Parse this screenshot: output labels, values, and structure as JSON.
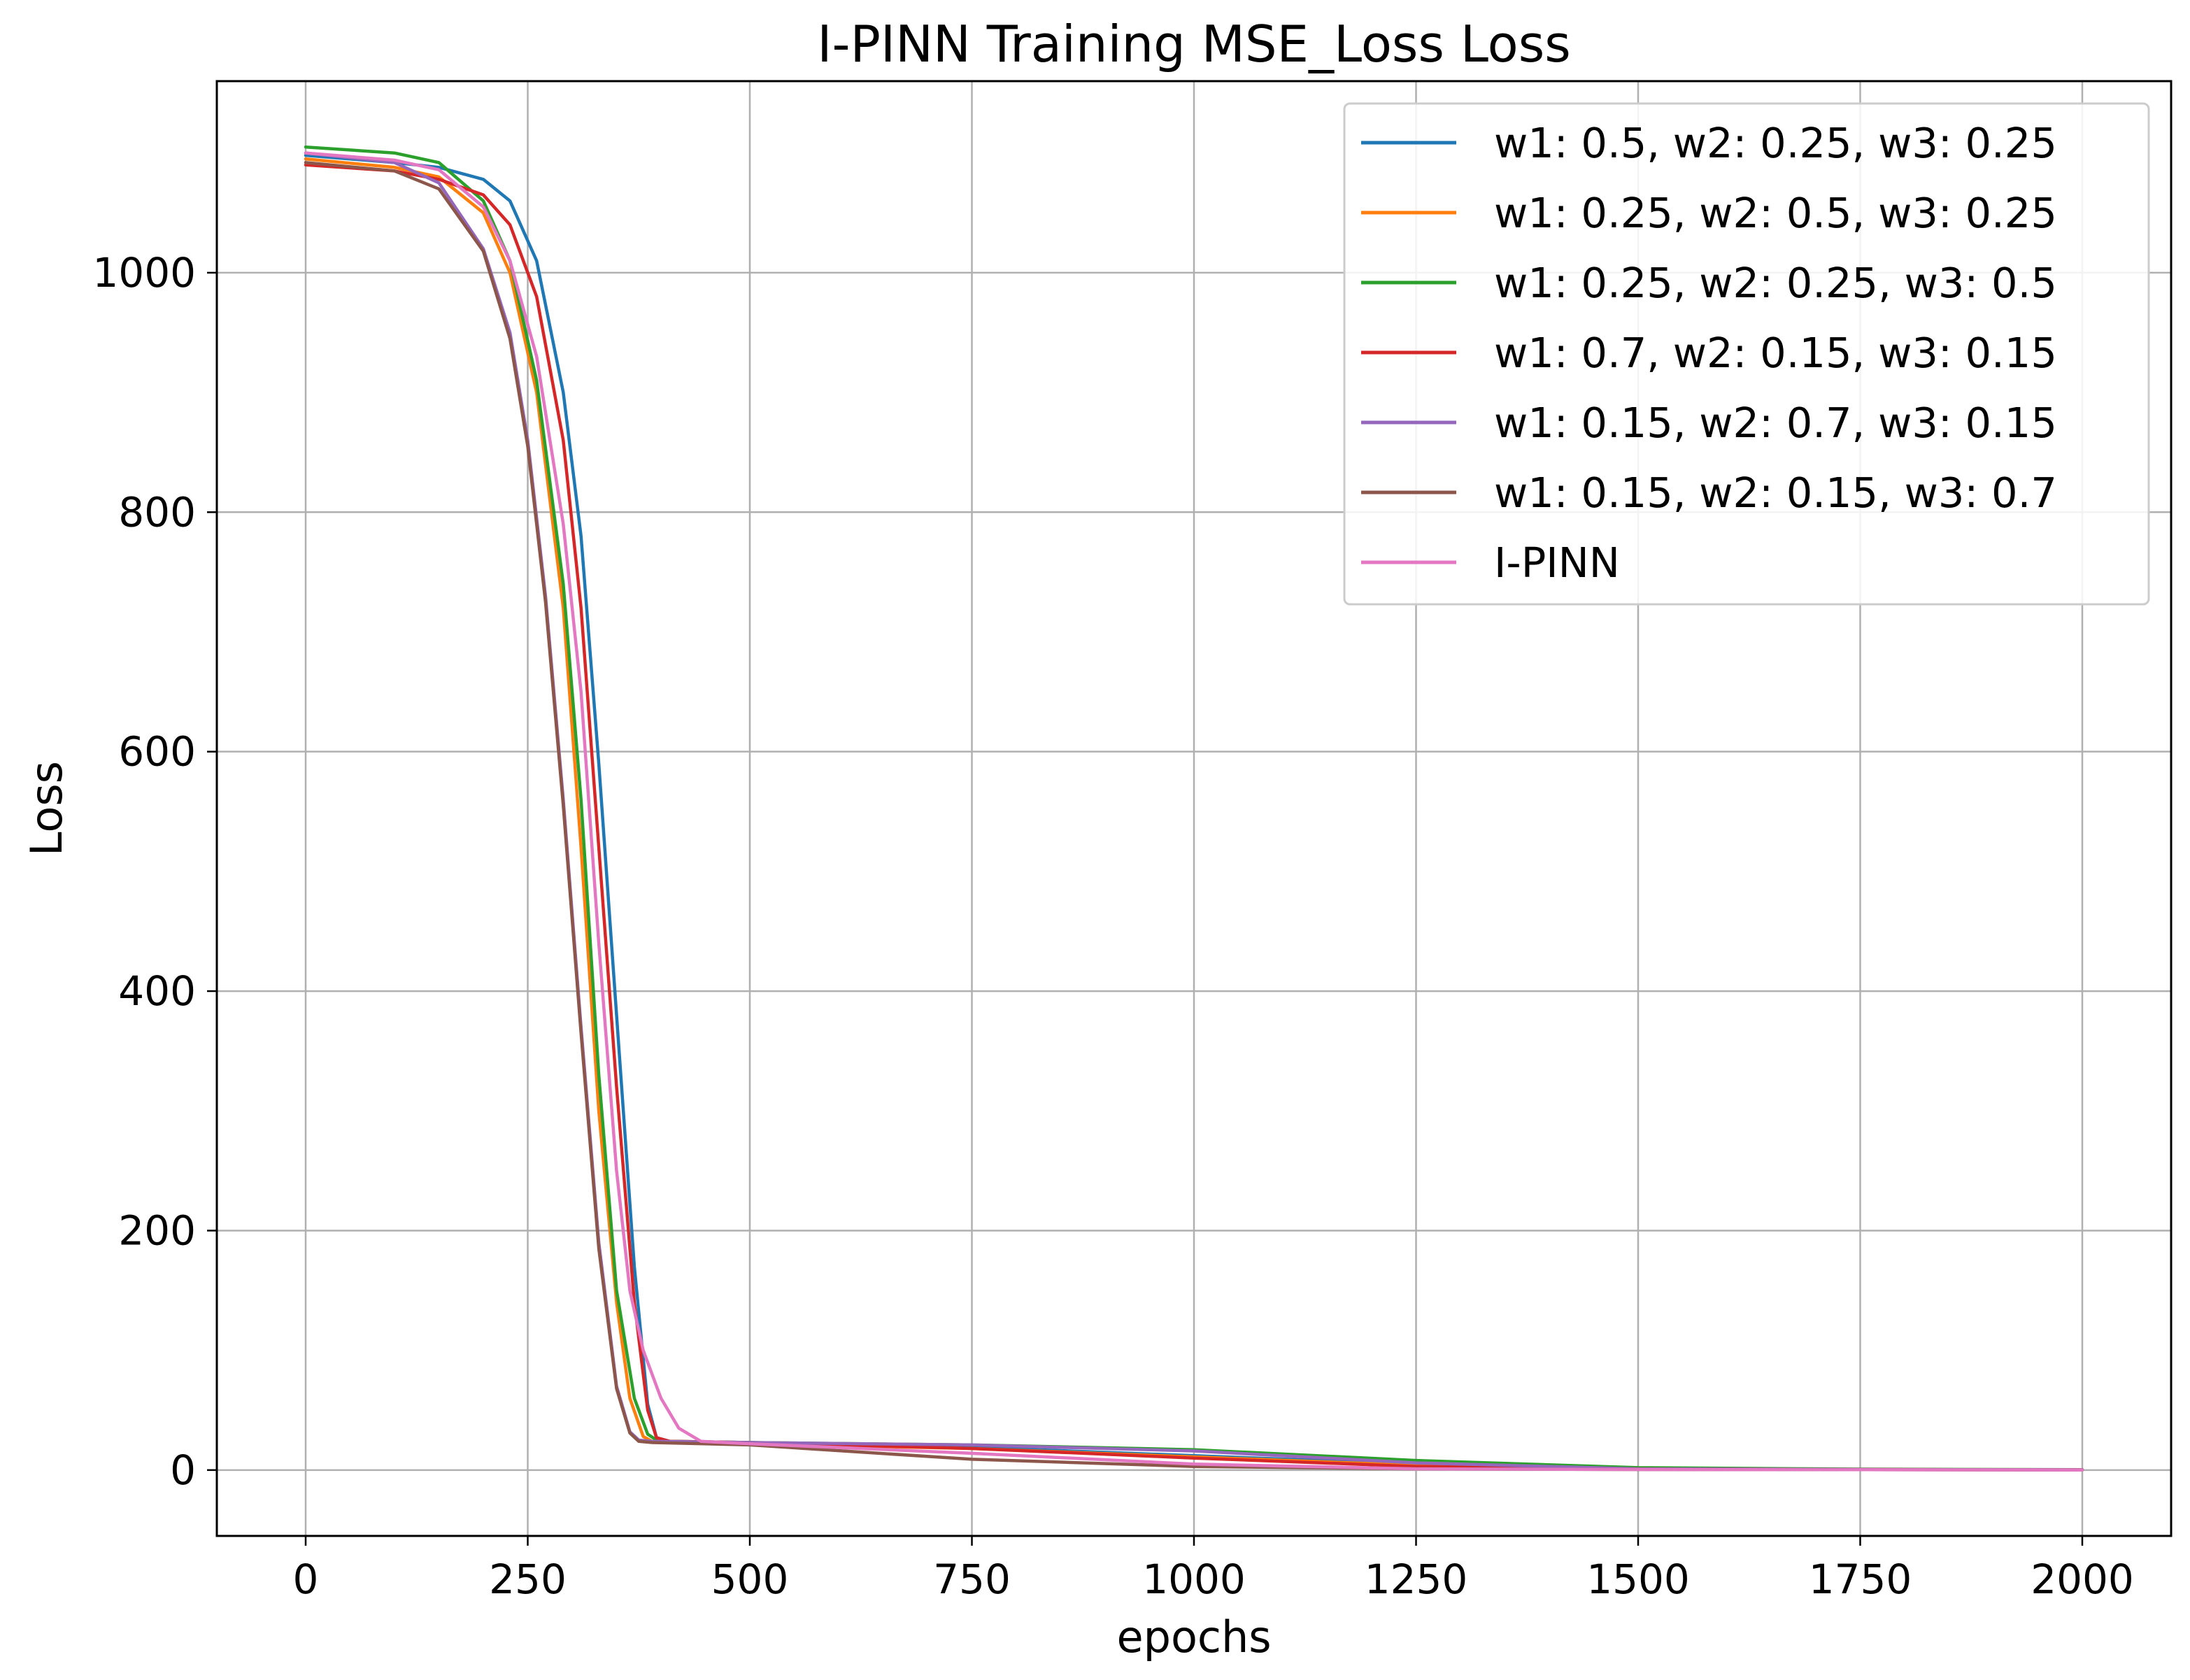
{
  "chart_data": {
    "type": "line",
    "title": "I-PINN Training MSE_Loss Loss",
    "xlabel": "epochs",
    "ylabel": "Loss",
    "xlim": [
      -100,
      2100
    ],
    "ylim": [
      -55,
      1160
    ],
    "xticks": [
      0,
      250,
      500,
      750,
      1000,
      1250,
      1500,
      1750,
      2000
    ],
    "yticks": [
      0,
      200,
      400,
      600,
      800,
      1000
    ],
    "grid": true,
    "legend_position": "top-right",
    "series": [
      {
        "name": "w1: 0.5, w2: 0.25, w3: 0.25",
        "color": "#1f77b4",
        "x": [
          0,
          100,
          150,
          200,
          230,
          260,
          290,
          310,
          330,
          350,
          370,
          385,
          395,
          410,
          500,
          750,
          1000,
          1250,
          1500,
          1750,
          2000
        ],
        "y": [
          1098,
          1092,
          1088,
          1078,
          1060,
          1010,
          900,
          780,
          590,
          380,
          170,
          55,
          27,
          24,
          23,
          19,
          12,
          5,
          1,
          0.5,
          0.2
        ]
      },
      {
        "name": "w1: 0.25, w2: 0.5, w3: 0.25",
        "color": "#ff7f0e",
        "x": [
          0,
          100,
          150,
          200,
          230,
          260,
          290,
          310,
          330,
          350,
          365,
          380,
          390,
          410,
          500,
          750,
          1000,
          1250,
          1500,
          1750,
          2000
        ],
        "y": [
          1095,
          1088,
          1080,
          1050,
          1000,
          900,
          720,
          520,
          300,
          140,
          60,
          28,
          24,
          23,
          22,
          18,
          11,
          4,
          1,
          0.5,
          0.2
        ]
      },
      {
        "name": "w1: 0.25, w2: 0.25, w3: 0.5",
        "color": "#2ca02c",
        "x": [
          0,
          100,
          150,
          200,
          230,
          260,
          290,
          310,
          330,
          350,
          370,
          385,
          395,
          410,
          500,
          750,
          1000,
          1250,
          1500,
          1750,
          2000
        ],
        "y": [
          1105,
          1100,
          1092,
          1060,
          1010,
          910,
          740,
          560,
          330,
          150,
          60,
          30,
          25,
          24,
          23,
          21,
          17,
          8,
          2,
          0.8,
          0.3
        ]
      },
      {
        "name": "w1: 0.7, w2: 0.15, w3: 0.15",
        "color": "#d62728",
        "x": [
          0,
          100,
          150,
          200,
          230,
          260,
          290,
          310,
          330,
          350,
          370,
          385,
          395,
          410,
          500,
          750,
          1000,
          1250,
          1500,
          1750,
          2000
        ],
        "y": [
          1090,
          1085,
          1078,
          1065,
          1040,
          980,
          860,
          720,
          520,
          320,
          140,
          50,
          27,
          24,
          23,
          18,
          10,
          3,
          1,
          0.5,
          0.2
        ]
      },
      {
        "name": "w1: 0.15, w2: 0.7, w3: 0.15",
        "color": "#9467bd",
        "x": [
          0,
          100,
          150,
          200,
          230,
          250,
          270,
          290,
          310,
          330,
          350,
          365,
          375,
          390,
          500,
          750,
          1000,
          1250,
          1500,
          1750,
          2000
        ],
        "y": [
          1100,
          1092,
          1075,
          1020,
          950,
          860,
          730,
          560,
          370,
          190,
          70,
          32,
          25,
          24,
          23,
          21,
          16,
          6,
          1,
          0.5,
          0.2
        ]
      },
      {
        "name": "w1: 0.15, w2: 0.15, w3: 0.7",
        "color": "#8c564b",
        "x": [
          0,
          100,
          150,
          200,
          230,
          250,
          270,
          290,
          310,
          330,
          350,
          365,
          375,
          390,
          500,
          750,
          1000,
          1250,
          1500,
          1750,
          2000
        ],
        "y": [
          1092,
          1085,
          1070,
          1018,
          945,
          855,
          725,
          555,
          365,
          185,
          68,
          31,
          24,
          23,
          21,
          9,
          3,
          1,
          0.5,
          0.3,
          0.1
        ]
      },
      {
        "name": "I-PINN",
        "color": "#e377c2",
        "x": [
          0,
          100,
          150,
          200,
          230,
          260,
          290,
          310,
          330,
          350,
          365,
          380,
          400,
          420,
          445,
          500,
          750,
          1000,
          1250,
          1500,
          1750,
          2000
        ],
        "y": [
          1100,
          1094,
          1086,
          1055,
          1010,
          930,
          790,
          650,
          440,
          250,
          150,
          100,
          60,
          35,
          24,
          22,
          14,
          5,
          1,
          0.5,
          0.3,
          0.1
        ]
      }
    ]
  }
}
